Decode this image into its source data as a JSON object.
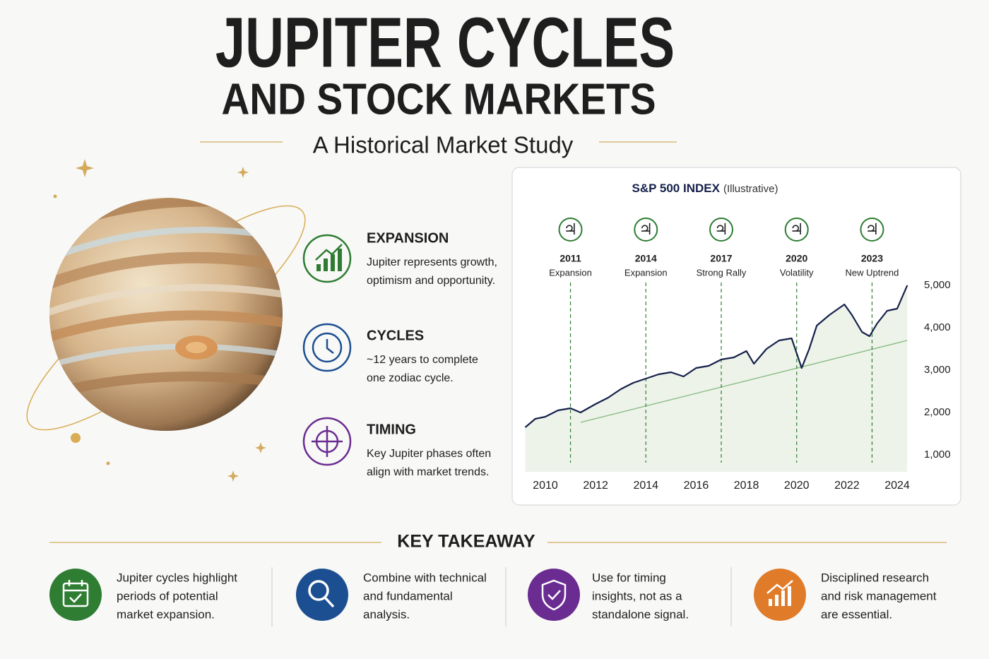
{
  "header": {
    "title": "JUPITER CYCLES",
    "title_line2": "AND STOCK MARKETS",
    "subtitle": "A Historical Market Study"
  },
  "features": [
    {
      "title": "EXPANSION",
      "color": "#2e7d32",
      "lines": [
        "Jupiter represents growth,",
        "optimism and opportunity."
      ]
    },
    {
      "title": "CYCLES",
      "color": "#1c4f91",
      "lines": [
        "~12 years to complete",
        "one zodiac cycle."
      ]
    },
    {
      "title": "TIMING",
      "color": "#6a2c91",
      "lines": [
        "Key Jupiter phases often",
        "align with market trends."
      ]
    }
  ],
  "chart_data": {
    "type": "line",
    "title": "S&P 500 INDEX",
    "subtitle": "(Illustrative)",
    "x": [
      2009.2,
      2009.6,
      2010,
      2010.5,
      2011,
      2011.4,
      2012,
      2012.5,
      2013,
      2013.5,
      2014,
      2014.5,
      2015,
      2015.5,
      2016,
      2016.5,
      2017,
      2017.5,
      2018,
      2018.3,
      2018.8,
      2019.3,
      2019.8,
      2020.2,
      2020.5,
      2020.8,
      2021.3,
      2021.9,
      2022.2,
      2022.6,
      2022.9,
      2023.2,
      2023.6,
      2024,
      2024.4
    ],
    "values": [
      1650,
      1850,
      1900,
      2050,
      2100,
      2000,
      2200,
      2350,
      2550,
      2700,
      2800,
      2900,
      2950,
      2850,
      3050,
      3100,
      3250,
      3300,
      3450,
      3150,
      3500,
      3700,
      3750,
      3050,
      3500,
      4050,
      4300,
      4550,
      4300,
      3900,
      3800,
      4100,
      4400,
      4450,
      5000
    ],
    "color": "#15204a",
    "area_color": "#eef3ea",
    "trend": {
      "x": [
        2011.4,
        2024.4
      ],
      "values": [
        1767,
        3700
      ],
      "color": "#8fc08a"
    },
    "event_symbol": "♃",
    "event_color": "#2e7d32",
    "events": [
      {
        "year": 2011,
        "label": "Expansion",
        "color": "#222222"
      },
      {
        "year": 2014,
        "label": "Expansion",
        "color": "#222222"
      },
      {
        "year": 2017,
        "label": "Strong Rally",
        "color": "#222222"
      },
      {
        "year": 2020,
        "label": "Volatility",
        "color": "#2e7d32"
      },
      {
        "year": 2023,
        "label": "New Uptrend",
        "color": "#2e7d32"
      }
    ],
    "xlim": [
      2009,
      2025
    ],
    "ylim": [
      600,
      5000
    ],
    "xticks": [
      2010,
      2012,
      2014,
      2016,
      2018,
      2020,
      2022,
      2024
    ],
    "yticks": [
      {
        "value": 1000,
        "label": "1,000"
      },
      {
        "value": 2000,
        "label": "2,000"
      },
      {
        "value": 3000,
        "label": "3,000"
      },
      {
        "value": 4000,
        "label": "4,000"
      },
      {
        "value": 5000,
        "label": "5,000"
      }
    ],
    "grid": false
  },
  "takeaway": {
    "title": "KEY TAKEAWAY",
    "items": [
      {
        "lines": [
          "Jupiter cycles highlight",
          "periods of potential",
          "market expansion."
        ]
      },
      {
        "lines": [
          "Combine with technical",
          "and fundamental",
          "analysis."
        ]
      },
      {
        "lines": [
          "Use for timing",
          "insights, not as a",
          "standalone signal."
        ]
      },
      {
        "lines": [
          "Disciplined research",
          "and risk management",
          "are essential."
        ]
      }
    ]
  }
}
